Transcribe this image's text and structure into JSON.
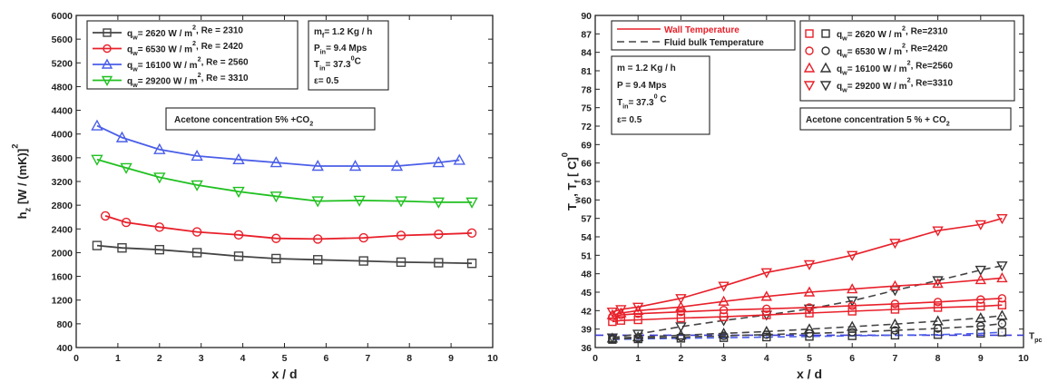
{
  "chart_data": [
    {
      "type": "line",
      "xlabel": "x / d",
      "ylabel": "h_z [W / (mK)]",
      "ylabel_main": "h",
      "ylabel_sub": "z",
      "ylabel_rest": " [W / (mK)]",
      "ylabel_sup": "2",
      "xlim": [
        0,
        10
      ],
      "ylim": [
        400,
        6000
      ],
      "xticks": [
        "0",
        "1",
        "2",
        "3",
        "4",
        "5",
        "6",
        "7",
        "8",
        "9",
        "10"
      ],
      "yticks": [
        "400",
        "800",
        "1200",
        "1600",
        "2000",
        "2400",
        "2800",
        "3200",
        "3600",
        "4000",
        "4400",
        "4800",
        "5200",
        "5600",
        "6000"
      ],
      "legend": {
        "placement": "top-left",
        "entries": [
          {
            "pre": "q",
            "sub": "w",
            "post": "= 2620 W / m",
            "sup": "2",
            "tail": ", Re = 2310"
          },
          {
            "pre": "q",
            "sub": "w",
            "post": "= 6530 W / m",
            "sup": "2",
            "tail": ", Re = 2420"
          },
          {
            "pre": "q",
            "sub": "w",
            "post": "= 16100 W / m",
            "sup": "2",
            "tail": ", Re = 2560"
          },
          {
            "pre": "q",
            "sub": "w",
            "post": "= 29200 W / m",
            "sup": "2",
            "tail": ", Re = 3310"
          }
        ]
      },
      "conditions": [
        {
          "pre": "m",
          "sub": "f",
          "post": "= 1.2 Kg / h"
        },
        {
          "pre": "P",
          "sub": "in",
          "post": "= 9.4 Mps"
        },
        {
          "pre": "T",
          "sub": "in",
          "post": "= 37.3",
          "sup": "0",
          "tail": "C"
        },
        {
          "pre": "ε",
          "sub": "",
          "post": "= 0.5"
        }
      ],
      "annotation": {
        "pre": "Acetone concentration 5% +CO",
        "sub": "2"
      },
      "series": [
        {
          "marker": "square",
          "color": "#444444",
          "x": [
            0.5,
            1.1,
            2.0,
            2.9,
            3.9,
            4.8,
            5.8,
            6.9,
            7.8,
            8.7,
            9.5
          ],
          "values": [
            2120,
            2080,
            2050,
            2000,
            1940,
            1900,
            1880,
            1860,
            1840,
            1830,
            1820
          ]
        },
        {
          "marker": "circle",
          "color": "#e8202a",
          "x": [
            0.7,
            1.2,
            2.0,
            2.9,
            3.9,
            4.8,
            5.8,
            6.9,
            7.8,
            8.7,
            9.5
          ],
          "values": [
            2620,
            2510,
            2430,
            2350,
            2300,
            2240,
            2230,
            2250,
            2290,
            2310,
            2330
          ]
        },
        {
          "marker": "triangle-up",
          "color": "#4a5ee8",
          "x": [
            0.5,
            1.1,
            2.0,
            2.9,
            3.9,
            4.8,
            5.8,
            6.7,
            7.7,
            8.7,
            9.2
          ],
          "values": [
            4140,
            3940,
            3740,
            3630,
            3570,
            3520,
            3460,
            3460,
            3460,
            3520,
            3560
          ]
        },
        {
          "marker": "triangle-down",
          "color": "#20c020",
          "x": [
            0.5,
            1.2,
            2.0,
            2.9,
            3.9,
            4.8,
            5.8,
            6.8,
            7.8,
            8.7,
            9.5
          ],
          "values": [
            3570,
            3430,
            3270,
            3140,
            3030,
            2950,
            2870,
            2880,
            2870,
            2850,
            2850
          ]
        }
      ]
    },
    {
      "type": "line",
      "xlabel": "x / d",
      "ylabel_main": "T",
      "ylabel_sub": "w",
      "ylabel_mid": ", T",
      "ylabel_sub2": "f",
      "ylabel_rest": " [ C]",
      "ylabel_sup": "0",
      "xlim": [
        0,
        10
      ],
      "ylim": [
        36,
        90
      ],
      "xticks": [
        "0",
        "1",
        "2",
        "3",
        "4",
        "5",
        "6",
        "7",
        "8",
        "9",
        "10"
      ],
      "yticks": [
        "36",
        "39",
        "42",
        "45",
        "48",
        "51",
        "54",
        "57",
        "60",
        "63",
        "66",
        "69",
        "72",
        "75",
        "78",
        "81",
        "84",
        "87",
        "90"
      ],
      "legend_lines": {
        "placement": "top-left",
        "entries": [
          {
            "label": "Wall Temperature",
            "style": "solid",
            "color": "#e8202a"
          },
          {
            "label": "Fluid bulk Temperature",
            "style": "dashed",
            "color": "#444444"
          }
        ]
      },
      "legend_markers": {
        "placement": "top-right",
        "entries": [
          {
            "marker": "square",
            "pre": "q",
            "sub": "w",
            "post": "= 2620 W / m",
            "sup": "2",
            "tail": ",  Re=2310"
          },
          {
            "marker": "circle",
            "pre": "q",
            "sub": "w",
            "post": "= 6530 W / m",
            "sup": "2",
            "tail": ",  Re=2420"
          },
          {
            "marker": "triangle-up",
            "pre": "q",
            "sub": "w",
            "post": "= 16100 W / m",
            "sup": "2",
            "tail": ",  Re=2560"
          },
          {
            "marker": "triangle-down",
            "pre": "q",
            "sub": "w",
            "post": "= 29200 W / m",
            "sup": "2",
            "tail": ",  Re=3310"
          }
        ]
      },
      "conditions": [
        {
          "pre": "m",
          "sub": "",
          "post": " = 1.2 Kg / h"
        },
        {
          "pre": "P",
          "sub": "",
          "post": "  = 9.4 Mps"
        },
        {
          "pre": "T",
          "sub": "in",
          "post": "= 37.3",
          "sup": "0",
          "tail": " C"
        },
        {
          "pre": "ε",
          "sub": "",
          "post": "= 0.5"
        }
      ],
      "annotation": {
        "pre": "Acetone concentration 5 % + CO",
        "sub": "2"
      },
      "side_label": {
        "pre": "T",
        "sub": "pc"
      },
      "pseudo_critical_temperature": 38.0,
      "wall_series": [
        {
          "marker": "square",
          "x": [
            0.4,
            0.6,
            1.0,
            2.0,
            3.0,
            4.0,
            5.0,
            6.0,
            7.0,
            8.0,
            9.0,
            9.5
          ],
          "values": [
            40.2,
            40.4,
            40.5,
            40.8,
            41.0,
            41.3,
            41.6,
            41.9,
            42.2,
            42.5,
            42.7,
            42.9
          ]
        },
        {
          "marker": "circle",
          "x": [
            0.4,
            0.6,
            1.0,
            2.0,
            3.0,
            4.0,
            5.0,
            6.0,
            7.0,
            8.0,
            9.0,
            9.5
          ],
          "values": [
            41.0,
            41.3,
            41.5,
            41.8,
            42.1,
            42.3,
            42.5,
            42.8,
            43.1,
            43.4,
            43.8,
            44.0
          ]
        },
        {
          "marker": "triangle-up",
          "x": [
            0.4,
            0.6,
            1.0,
            2.0,
            3.0,
            4.0,
            5.0,
            6.0,
            7.0,
            8.0,
            9.0,
            9.5
          ],
          "values": [
            41.3,
            41.6,
            42.0,
            42.6,
            43.5,
            44.3,
            45.0,
            45.5,
            46.0,
            46.4,
            47.0,
            47.3
          ]
        },
        {
          "marker": "triangle-down",
          "x": [
            0.4,
            0.6,
            1.0,
            2.0,
            3.0,
            4.0,
            5.0,
            6.0,
            7.0,
            8.0,
            9.0,
            9.5
          ],
          "values": [
            41.8,
            42.2,
            42.6,
            44.0,
            46.0,
            48.2,
            49.5,
            51.0,
            53.0,
            55.0,
            56.0,
            57.0
          ]
        }
      ],
      "bulk_series": [
        {
          "marker": "square",
          "color": "#4a5ee8",
          "x": [
            0.4,
            1.0,
            2.0,
            3.0,
            4.0,
            5.0,
            6.0,
            7.0,
            8.0,
            9.0,
            9.5
          ],
          "values": [
            37.3,
            37.4,
            37.5,
            37.6,
            37.7,
            37.8,
            37.9,
            38.0,
            38.1,
            38.3,
            38.5
          ]
        },
        {
          "marker": "circle",
          "color": "#444444",
          "x": [
            0.4,
            1.0,
            2.0,
            3.0,
            4.0,
            5.0,
            6.0,
            7.0,
            8.0,
            9.0,
            9.5
          ],
          "values": [
            37.4,
            37.5,
            37.7,
            37.9,
            38.1,
            38.3,
            38.5,
            38.8,
            39.1,
            39.5,
            39.9
          ]
        },
        {
          "marker": "triangle-up",
          "color": "#444444",
          "x": [
            0.4,
            1.0,
            2.0,
            3.0,
            4.0,
            5.0,
            6.0,
            7.0,
            8.0,
            9.0,
            9.5
          ],
          "values": [
            37.5,
            37.7,
            38.0,
            38.3,
            38.6,
            39.0,
            39.4,
            39.8,
            40.3,
            40.8,
            41.2
          ]
        },
        {
          "marker": "triangle-down",
          "color": "#444444",
          "x": [
            0.4,
            1.0,
            2.0,
            3.0,
            4.0,
            5.0,
            6.0,
            7.0,
            8.0,
            9.0,
            9.5
          ],
          "values": [
            37.6,
            38.2,
            39.4,
            40.4,
            41.3,
            42.3,
            43.6,
            45.3,
            46.9,
            48.6,
            49.3
          ]
        }
      ]
    }
  ]
}
